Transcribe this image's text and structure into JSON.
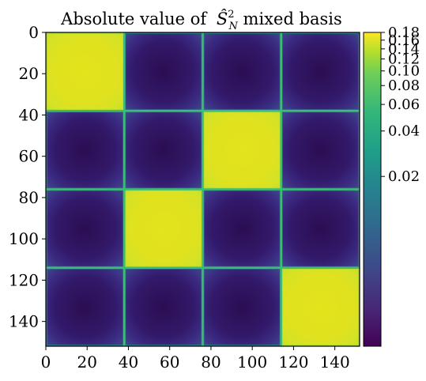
{
  "chart_data": {
    "type": "heatmap",
    "title": "Absolute value of",
    "title_symbol": "Ŝ",
    "title_sup": "2",
    "title_sub": "N",
    "title_suffix": " mixed basis",
    "xlabel": "",
    "ylabel": "",
    "xlim": [
      0,
      152
    ],
    "ylim": [
      0,
      152
    ],
    "x_ticks": [
      "0",
      "20",
      "40",
      "60",
      "80",
      "100",
      "120",
      "140"
    ],
    "y_ticks": [
      "0",
      "20",
      "40",
      "60",
      "80",
      "100",
      "120",
      "140"
    ],
    "block_size": 38,
    "blocks": 4,
    "high_blocks": [
      [
        0,
        0
      ],
      [
        1,
        2
      ],
      [
        2,
        1
      ],
      [
        3,
        3
      ]
    ],
    "high_value": 0.17,
    "low_value": 0.001,
    "colormap": "viridis",
    "color_scale": "log",
    "colorbar": {
      "ticks": [
        "0.18",
        "0.16",
        "0.14",
        "0.12",
        "0.10",
        "0.08",
        "0.06",
        "0.04",
        "0.02"
      ],
      "tick_values": [
        0.18,
        0.16,
        0.14,
        0.12,
        0.1,
        0.08,
        0.06,
        0.04,
        0.02
      ],
      "min": 0.0015,
      "max": 0.18
    }
  }
}
